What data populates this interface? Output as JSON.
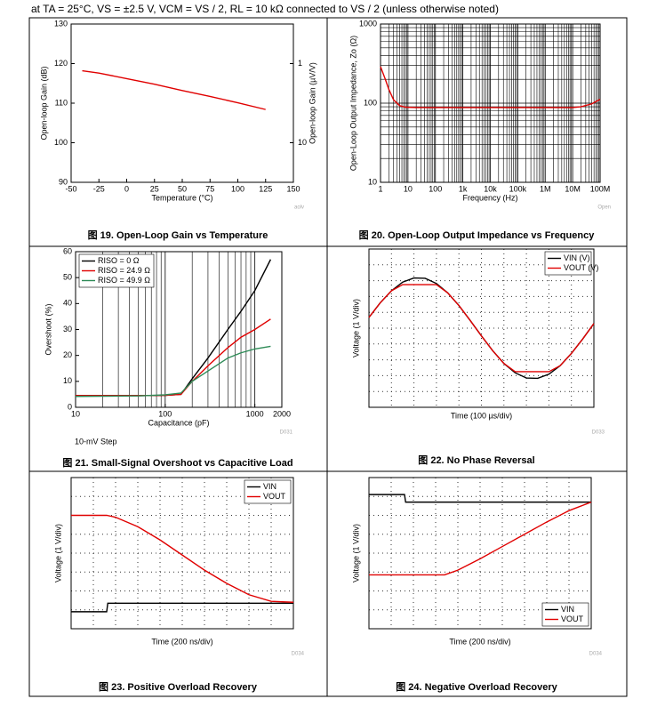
{
  "header": "at TA = 25°C, VS = ±2.5 V, VCM = VS / 2, RL = 10 kΩ connected to VS / 2 (unless otherwise noted)",
  "chart_data": [
    {
      "type": "line",
      "caption": "图 19. Open-Loop Gain vs Temperature",
      "x_label": "Temperature (°C)",
      "y_label": "Open-loop Gain (dB)",
      "y2_label": "Open-loop Gain (µV/V)",
      "watermark": "aolv",
      "xlim": [
        -50,
        150
      ],
      "xticks": [
        -50,
        -25,
        0,
        25,
        50,
        75,
        100,
        125,
        150
      ],
      "ylim": [
        90,
        130
      ],
      "yticks": [
        90,
        100,
        110,
        120,
        130
      ],
      "y2lim": [
        31.6228,
        0.316228
      ],
      "y2log": true,
      "y2ticks": [
        1,
        10
      ],
      "grid": false,
      "series": [
        {
          "color": "#e00000",
          "x": [
            -40,
            -25,
            0,
            25,
            50,
            75,
            100,
            125
          ],
          "values": [
            118.2,
            117.6,
            116.2,
            114.8,
            113.2,
            111.7,
            110.1,
            108.4
          ]
        }
      ]
    },
    {
      "type": "line",
      "caption": "图 20. Open-Loop Output Impedance vs Frequency",
      "x_label": "Frequency (Hz)",
      "y_label": "Open-Loop Output Impedance, Zo (Ω)",
      "watermark": "Open",
      "xlog": true,
      "ylog": true,
      "grid": true,
      "xlim": [
        1,
        100000000
      ],
      "xticks": [
        1,
        10,
        100,
        {
          "value": 1000,
          "label": "1k"
        },
        {
          "value": 10000,
          "label": "10k"
        },
        {
          "value": 100000,
          "label": "100k"
        },
        {
          "value": 1000000,
          "label": "1M"
        },
        {
          "value": 10000000,
          "label": "10M"
        },
        {
          "value": 100000000,
          "label": "100M"
        }
      ],
      "ylim": [
        10,
        1000
      ],
      "yticks": [
        10,
        100,
        1000
      ],
      "series": [
        {
          "color": "#e00000",
          "x": [
            1,
            1.5,
            2,
            3,
            5,
            8,
            20,
            1000,
            100000,
            10000000,
            20000000,
            50000000,
            100000000
          ],
          "values": [
            290,
            200,
            150,
            110,
            93,
            89,
            88,
            88,
            88,
            88,
            90,
            98,
            112
          ]
        }
      ]
    },
    {
      "type": "line",
      "caption": "图 21. Small-Signal Overshoot vs Capacitive Load",
      "x_label": "Capacitance (pF)",
      "y_label": "Overshoot (%)",
      "watermark": "D031",
      "annotation": "10-mV Step",
      "xlog": true,
      "grid": "x",
      "legend": "upper left",
      "xlim": [
        10,
        2000
      ],
      "xticks": [
        10,
        100,
        1000,
        2000
      ],
      "ylim": [
        0,
        60
      ],
      "yticks": [
        0,
        10,
        20,
        30,
        40,
        50,
        60
      ],
      "series": [
        {
          "name": "RISO = 0 Ω",
          "color": "#000000",
          "x": [
            10,
            50,
            100,
            150,
            200,
            300,
            500,
            700,
            1000,
            1500
          ],
          "values": [
            4.5,
            4.5,
            4.6,
            5,
            11,
            19,
            30,
            37,
            45,
            57
          ]
        },
        {
          "name": "RISO = 24.9 Ω",
          "color": "#e00000",
          "x": [
            10,
            50,
            100,
            150,
            200,
            300,
            500,
            700,
            1000,
            1500
          ],
          "values": [
            4.5,
            4.5,
            4.6,
            5,
            10,
            16,
            23,
            27,
            30,
            34
          ]
        },
        {
          "name": "RISO = 49.9 Ω",
          "color": "#2e8b57",
          "x": [
            10,
            50,
            100,
            150,
            200,
            300,
            500,
            700,
            1000,
            1500
          ],
          "values": [
            4.2,
            4.4,
            4.8,
            5.5,
            10,
            14,
            19,
            21,
            22.5,
            23.5
          ]
        }
      ]
    },
    {
      "type": "line",
      "caption": "图 22. No Phase Reversal",
      "x_label": "Time (100 µs/div)",
      "y_label": "Voltage (1 V/div)",
      "watermark": "D033",
      "grid": "dotted",
      "divisions": {
        "x": 10,
        "y": 10
      },
      "legend": "upper right",
      "xlim": [
        0,
        10
      ],
      "ylim": [
        -5,
        5
      ],
      "series": [
        {
          "name": "VIN (V)",
          "color": "#000000",
          "x": [
            0,
            0.5,
            1,
            1.5,
            2,
            2.5,
            3,
            3.5,
            4,
            4.5,
            5,
            5.5,
            6,
            6.5,
            7,
            7.5,
            8,
            8.5,
            9,
            9.5,
            10
          ],
          "values": [
            0.68,
            1.6,
            2.36,
            2.91,
            3.17,
            3.15,
            2.82,
            2.23,
            1.43,
            0.49,
            -0.49,
            -1.42,
            -2.23,
            -2.82,
            -3.15,
            -3.17,
            -2.91,
            -2.37,
            -1.6,
            -0.69,
            0.29
          ]
        },
        {
          "name": "VOUT (V)",
          "color": "#e00000",
          "x": [
            0,
            0.5,
            1,
            1.5,
            2,
            2.5,
            3,
            3.5,
            4,
            4.5,
            5,
            5.5,
            6,
            6.5,
            7,
            7.5,
            8,
            8.5,
            9,
            9.5,
            10
          ],
          "values": [
            0.68,
            1.6,
            2.36,
            2.75,
            2.75,
            2.75,
            2.75,
            2.23,
            1.43,
            0.49,
            -0.49,
            -1.42,
            -2.23,
            -2.75,
            -2.75,
            -2.75,
            -2.75,
            -2.37,
            -1.6,
            -0.69,
            0.29
          ]
        }
      ]
    },
    {
      "type": "line",
      "caption": "图 23. Positive Overload Recovery",
      "x_label": "Time (200 ns/div)",
      "y_label": "Voltage (1 V/div)",
      "watermark": "D034",
      "grid": "dotted",
      "divisions": {
        "x": 10,
        "y": 8
      },
      "legend": "upper right",
      "xlim": [
        0,
        10
      ],
      "ylim": [
        -4,
        4
      ],
      "series": [
        {
          "name": "VIN",
          "color": "#000000",
          "x": [
            0,
            1.6,
            1.65,
            10
          ],
          "values": [
            -3.1,
            -3.1,
            -2.65,
            -2.65
          ]
        },
        {
          "name": "VOUT",
          "color": "#e00000",
          "x": [
            0,
            1.6,
            2,
            3,
            4,
            5,
            6,
            7,
            8,
            9,
            10
          ],
          "values": [
            2.0,
            2.0,
            1.9,
            1.4,
            0.7,
            -0.1,
            -0.9,
            -1.6,
            -2.2,
            -2.55,
            -2.6
          ]
        }
      ]
    },
    {
      "type": "line",
      "caption": "图 24. Negative Overload Recovery",
      "x_label": "Time (200 ns/div)",
      "y_label": "Voltage (1 V/div)",
      "watermark": "D034",
      "grid": "dotted",
      "divisions": {
        "x": 10,
        "y": 8
      },
      "legend": "lower right",
      "xlim": [
        0,
        10
      ],
      "ylim": [
        -4,
        4
      ],
      "series": [
        {
          "name": "VIN",
          "color": "#000000",
          "x": [
            0,
            1.6,
            1.65,
            10
          ],
          "values": [
            3.1,
            3.1,
            2.7,
            2.7
          ]
        },
        {
          "name": "VOUT",
          "color": "#e00000",
          "x": [
            0,
            3.4,
            4,
            5,
            6,
            7,
            8,
            9,
            10
          ],
          "values": [
            -1.15,
            -1.15,
            -0.9,
            -0.3,
            0.35,
            1.0,
            1.65,
            2.25,
            2.7
          ]
        }
      ]
    }
  ]
}
